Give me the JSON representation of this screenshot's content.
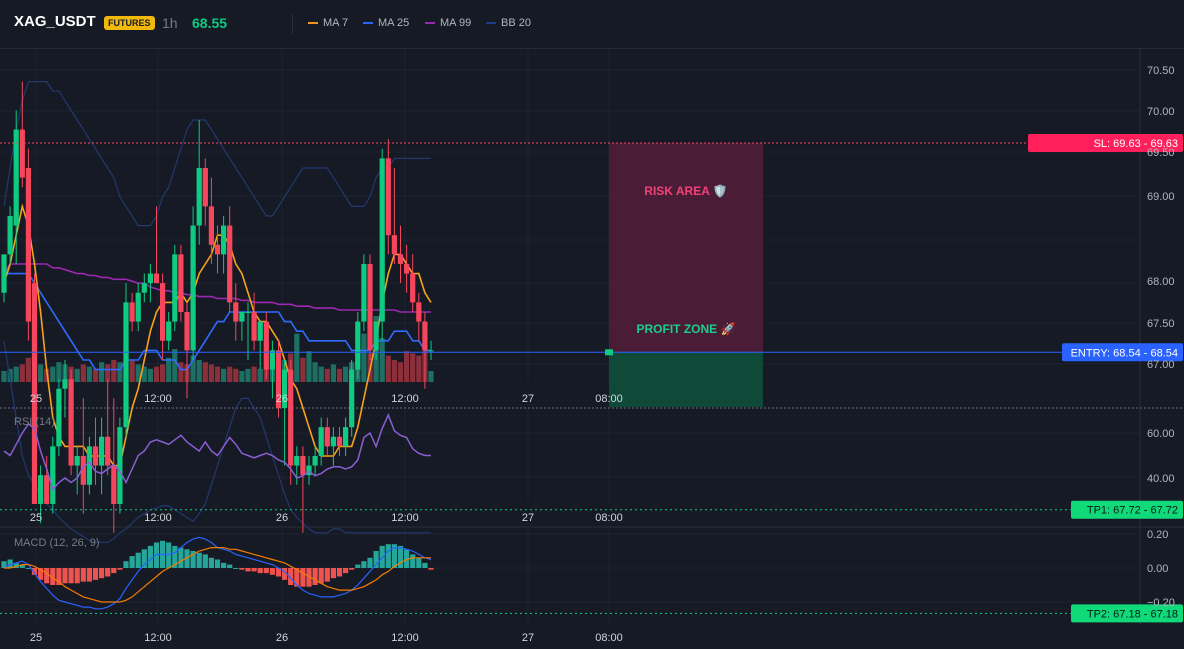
{
  "header": {
    "symbol": "XAG_USDT",
    "badge": "FUTURES",
    "timeframe": "1h",
    "price": "68.55",
    "legend": [
      {
        "label": "MA 7",
        "color": "#f7931a"
      },
      {
        "label": "MA 25",
        "color": "#2962ff"
      },
      {
        "label": "MA 99",
        "color": "#9c27b0"
      },
      {
        "label": "BB 20",
        "color": "#1e3a8a"
      }
    ]
  },
  "colors": {
    "up": "#0ecb81",
    "down": "#f6465d",
    "vol_up": "#1e6f63",
    "vol_down": "#8b2f3a",
    "ma7": "#f7a21b",
    "ma25": "#2f6bff",
    "ma99": "#9c27b0",
    "bb": "#22386e",
    "rsi": "#8a5fd3",
    "macd_line": "#2962ff",
    "signal_line": "#f57c00",
    "hist_pos": "#26a69a",
    "hist_neg": "#ef5350"
  },
  "main_axis": {
    "ticks": [
      "70.50",
      "70.00",
      "69.50",
      "69.00",
      "68.00",
      "67.50",
      "67.00"
    ]
  },
  "time_labels": [
    "25",
    "12:00",
    "26",
    "12:00",
    "27",
    "08:00"
  ],
  "levels": {
    "sl": {
      "label": "SL: 69.63",
      "value": "69.63",
      "price": 69.63
    },
    "entry": {
      "label": "ENTRY: 68.54",
      "value": "68.54",
      "price": 68.54
    },
    "tp1": {
      "label": "TP1: 67.72",
      "value": "67.72",
      "price": 67.72
    },
    "tp2": {
      "label": "TP2: 67.18",
      "value": "67.18",
      "price": 67.18
    }
  },
  "zones": {
    "risk": "RISK AREA 🛡️",
    "profit": "PROFIT ZONE 🚀"
  },
  "rsi": {
    "title": "RSI (14)",
    "ticks": [
      "60.00",
      "40.00"
    ]
  },
  "macd": {
    "title": "MACD (12, 26, 9)",
    "ticks": [
      "0.20",
      "0.00",
      "−0.20"
    ]
  },
  "chart_data": {
    "type": "candlestick",
    "price_range": [
      66.8,
      70.8
    ],
    "candles": [
      {
        "o": 68.85,
        "h": 69.05,
        "l": 68.8,
        "c": 69.05
      },
      {
        "o": 69.05,
        "h": 69.3,
        "l": 69.0,
        "c": 69.25
      },
      {
        "o": 69.2,
        "h": 69.8,
        "l": 69.0,
        "c": 69.7
      },
      {
        "o": 69.7,
        "h": 69.95,
        "l": 69.4,
        "c": 69.45
      },
      {
        "o": 69.5,
        "h": 69.6,
        "l": 68.6,
        "c": 68.7
      },
      {
        "o": 68.9,
        "h": 68.95,
        "l": 67.75,
        "c": 67.75
      },
      {
        "o": 67.75,
        "h": 67.95,
        "l": 67.65,
        "c": 67.9
      },
      {
        "o": 67.9,
        "h": 68.0,
        "l": 67.75,
        "c": 67.75
      },
      {
        "o": 67.75,
        "h": 68.1,
        "l": 67.7,
        "c": 68.05
      },
      {
        "o": 68.05,
        "h": 68.4,
        "l": 68.0,
        "c": 68.35
      },
      {
        "o": 68.35,
        "h": 68.5,
        "l": 68.2,
        "c": 68.4
      },
      {
        "o": 68.4,
        "h": 68.45,
        "l": 67.9,
        "c": 67.95
      },
      {
        "o": 67.95,
        "h": 68.05,
        "l": 67.8,
        "c": 68.0
      },
      {
        "o": 68.0,
        "h": 68.3,
        "l": 67.7,
        "c": 67.85
      },
      {
        "o": 67.85,
        "h": 68.1,
        "l": 67.8,
        "c": 68.05
      },
      {
        "o": 68.05,
        "h": 68.2,
        "l": 67.85,
        "c": 67.95
      },
      {
        "o": 67.95,
        "h": 68.2,
        "l": 67.8,
        "c": 68.1
      },
      {
        "o": 68.1,
        "h": 68.4,
        "l": 67.9,
        "c": 67.95
      },
      {
        "o": 67.95,
        "h": 68.3,
        "l": 67.6,
        "c": 67.75
      },
      {
        "o": 67.75,
        "h": 68.2,
        "l": 67.7,
        "c": 68.15
      },
      {
        "o": 68.15,
        "h": 68.9,
        "l": 68.1,
        "c": 68.8
      },
      {
        "o": 68.8,
        "h": 68.85,
        "l": 68.65,
        "c": 68.7
      },
      {
        "o": 68.7,
        "h": 68.9,
        "l": 68.65,
        "c": 68.85
      },
      {
        "o": 68.85,
        "h": 68.95,
        "l": 68.8,
        "c": 68.9
      },
      {
        "o": 68.9,
        "h": 69.0,
        "l": 68.8,
        "c": 68.95
      },
      {
        "o": 68.95,
        "h": 69.3,
        "l": 68.9,
        "c": 68.9
      },
      {
        "o": 68.9,
        "h": 68.95,
        "l": 68.5,
        "c": 68.6
      },
      {
        "o": 68.6,
        "h": 68.75,
        "l": 68.55,
        "c": 68.7
      },
      {
        "o": 68.7,
        "h": 69.1,
        "l": 68.65,
        "c": 69.05
      },
      {
        "o": 69.05,
        "h": 69.1,
        "l": 68.7,
        "c": 68.75
      },
      {
        "o": 68.75,
        "h": 68.8,
        "l": 68.3,
        "c": 68.55
      },
      {
        "o": 68.55,
        "h": 69.3,
        "l": 68.5,
        "c": 69.2
      },
      {
        "o": 69.2,
        "h": 69.75,
        "l": 69.1,
        "c": 69.5
      },
      {
        "o": 69.5,
        "h": 69.55,
        "l": 69.2,
        "c": 69.3
      },
      {
        "o": 69.3,
        "h": 69.45,
        "l": 69.0,
        "c": 69.1
      },
      {
        "o": 69.1,
        "h": 69.2,
        "l": 68.95,
        "c": 69.05
      },
      {
        "o": 69.05,
        "h": 69.25,
        "l": 68.95,
        "c": 69.2
      },
      {
        "o": 69.2,
        "h": 69.3,
        "l": 68.75,
        "c": 68.8
      },
      {
        "o": 68.8,
        "h": 68.9,
        "l": 68.6,
        "c": 68.7
      },
      {
        "o": 68.7,
        "h": 68.75,
        "l": 68.6,
        "c": 68.75
      },
      {
        "o": 68.75,
        "h": 68.8,
        "l": 68.5,
        "c": 68.75
      },
      {
        "o": 68.75,
        "h": 68.85,
        "l": 68.55,
        "c": 68.6
      },
      {
        "o": 68.6,
        "h": 68.7,
        "l": 68.45,
        "c": 68.7
      },
      {
        "o": 68.7,
        "h": 68.75,
        "l": 68.4,
        "c": 68.45
      },
      {
        "o": 68.45,
        "h": 68.6,
        "l": 68.3,
        "c": 68.55
      },
      {
        "o": 68.55,
        "h": 68.6,
        "l": 68.2,
        "c": 68.25
      },
      {
        "o": 68.25,
        "h": 68.5,
        "l": 67.95,
        "c": 68.45
      },
      {
        "o": 68.45,
        "h": 68.5,
        "l": 67.85,
        "c": 67.95
      },
      {
        "o": 67.95,
        "h": 68.05,
        "l": 67.85,
        "c": 68.0
      },
      {
        "o": 68.0,
        "h": 68.05,
        "l": 67.6,
        "c": 67.9
      },
      {
        "o": 67.9,
        "h": 68.0,
        "l": 67.85,
        "c": 67.95
      },
      {
        "o": 67.95,
        "h": 68.05,
        "l": 67.9,
        "c": 68.0
      },
      {
        "o": 68.0,
        "h": 68.2,
        "l": 67.95,
        "c": 68.15
      },
      {
        "o": 68.15,
        "h": 68.2,
        "l": 68.0,
        "c": 68.05
      },
      {
        "o": 68.05,
        "h": 68.15,
        "l": 67.95,
        "c": 68.1
      },
      {
        "o": 68.1,
        "h": 68.15,
        "l": 68.0,
        "c": 68.05
      },
      {
        "o": 68.05,
        "h": 68.2,
        "l": 68.0,
        "c": 68.15
      },
      {
        "o": 68.15,
        "h": 68.5,
        "l": 68.1,
        "c": 68.45
      },
      {
        "o": 68.45,
        "h": 68.75,
        "l": 68.4,
        "c": 68.7
      },
      {
        "o": 68.7,
        "h": 69.05,
        "l": 68.65,
        "c": 69.0
      },
      {
        "o": 69.0,
        "h": 69.05,
        "l": 68.5,
        "c": 68.55
      },
      {
        "o": 68.55,
        "h": 68.7,
        "l": 68.5,
        "c": 68.7
      },
      {
        "o": 68.7,
        "h": 69.6,
        "l": 68.6,
        "c": 69.55
      },
      {
        "o": 69.55,
        "h": 69.65,
        "l": 69.05,
        "c": 69.15
      },
      {
        "o": 69.15,
        "h": 69.5,
        "l": 69.0,
        "c": 69.05
      },
      {
        "o": 69.05,
        "h": 69.2,
        "l": 68.9,
        "c": 69.0
      },
      {
        "o": 69.0,
        "h": 69.1,
        "l": 68.85,
        "c": 68.95
      },
      {
        "o": 68.95,
        "h": 69.05,
        "l": 68.75,
        "c": 68.8
      },
      {
        "o": 68.8,
        "h": 68.85,
        "l": 68.6,
        "c": 68.7
      },
      {
        "o": 68.7,
        "h": 68.75,
        "l": 68.35,
        "c": 68.55
      },
      {
        "o": 68.55,
        "h": 68.6,
        "l": 68.5,
        "c": 68.55
      }
    ],
    "volume": [
      10,
      12,
      14,
      16,
      22,
      60,
      16,
      12,
      14,
      18,
      16,
      14,
      12,
      16,
      14,
      12,
      18,
      16,
      20,
      18,
      30,
      20,
      16,
      14,
      12,
      14,
      16,
      22,
      30,
      18,
      16,
      24,
      20,
      18,
      16,
      14,
      12,
      14,
      12,
      10,
      12,
      14,
      12,
      14,
      16,
      18,
      20,
      26,
      44,
      22,
      28,
      18,
      14,
      12,
      16,
      12,
      14,
      18,
      30,
      44,
      26,
      60,
      40,
      24,
      20,
      18,
      28,
      26,
      24,
      30,
      10
    ],
    "ma7": [
      68.9,
      69.0,
      69.15,
      69.3,
      69.2,
      69.0,
      68.75,
      68.45,
      68.2,
      68.1,
      68.05,
      68.05,
      68.05,
      68.05,
      68.0,
      68.0,
      68.0,
      68.0,
      67.95,
      67.95,
      68.1,
      68.25,
      68.35,
      68.5,
      68.65,
      68.75,
      68.8,
      68.8,
      68.8,
      68.85,
      68.8,
      68.85,
      68.95,
      69.0,
      69.05,
      69.15,
      69.15,
      69.1,
      69.0,
      68.95,
      68.85,
      68.75,
      68.7,
      68.7,
      68.65,
      68.6,
      68.5,
      68.4,
      68.35,
      68.25,
      68.15,
      68.05,
      68.0,
      68.0,
      68.0,
      68.05,
      68.05,
      68.05,
      68.15,
      68.3,
      68.45,
      68.6,
      68.8,
      68.95,
      69.05,
      69.05,
      69.0,
      68.95,
      68.95,
      68.85,
      68.8
    ],
    "ma25": [
      68.95,
      68.95,
      68.95,
      68.95,
      68.95,
      68.9,
      68.85,
      68.8,
      68.75,
      68.7,
      68.65,
      68.6,
      68.55,
      68.5,
      68.5,
      68.45,
      68.45,
      68.45,
      68.45,
      68.45,
      68.5,
      68.5,
      68.5,
      68.55,
      68.55,
      68.55,
      68.5,
      68.5,
      68.5,
      68.45,
      68.45,
      68.5,
      68.55,
      68.6,
      68.65,
      68.7,
      68.7,
      68.75,
      68.75,
      68.75,
      68.75,
      68.75,
      68.75,
      68.75,
      68.75,
      68.75,
      68.7,
      68.7,
      68.65,
      68.65,
      68.6,
      68.6,
      68.6,
      68.6,
      68.6,
      68.6,
      68.6,
      68.55,
      68.55,
      68.55,
      68.55,
      68.6,
      68.6,
      68.6,
      68.65,
      68.65,
      68.65,
      68.6,
      68.6,
      68.55,
      68.55
    ],
    "ma99": [
      68.95,
      69.0,
      69.0,
      69.0,
      69.0,
      69.0,
      69.0,
      69.0,
      68.98,
      68.98,
      68.97,
      68.96,
      68.95,
      68.95,
      68.94,
      68.94,
      68.93,
      68.93,
      68.92,
      68.92,
      68.92,
      68.91,
      68.9,
      68.9,
      68.88,
      68.87,
      68.86,
      68.86,
      68.85,
      68.85,
      68.84,
      68.84,
      68.83,
      68.83,
      68.83,
      68.82,
      68.82,
      68.82,
      68.82,
      68.81,
      68.81,
      68.8,
      68.8,
      68.8,
      68.8,
      68.79,
      68.79,
      68.79,
      68.78,
      68.78,
      68.78,
      68.77,
      68.77,
      68.77,
      68.77,
      68.76,
      68.76,
      68.76,
      68.76,
      68.76,
      68.76,
      68.76,
      68.76,
      68.76,
      68.76,
      68.75,
      68.75,
      68.75,
      68.75,
      68.75,
      68.75
    ],
    "bb_upper": [
      69.3,
      69.5,
      69.7,
      69.85,
      69.95,
      69.95,
      69.95,
      69.95,
      69.9,
      69.9,
      69.85,
      69.8,
      69.75,
      69.7,
      69.65,
      69.6,
      69.55,
      69.5,
      69.45,
      69.35,
      69.3,
      69.25,
      69.2,
      69.2,
      69.2,
      69.25,
      69.35,
      69.4,
      69.5,
      69.6,
      69.7,
      69.75,
      69.75,
      69.75,
      69.7,
      69.65,
      69.6,
      69.55,
      69.5,
      69.45,
      69.4,
      69.35,
      69.3,
      69.25,
      69.25,
      69.3,
      69.35,
      69.4,
      69.45,
      69.5,
      69.5,
      69.5,
      69.5,
      69.5,
      69.45,
      69.4,
      69.35,
      69.3,
      69.3,
      69.3,
      69.35,
      69.45,
      69.5,
      69.5,
      69.55,
      69.55,
      69.55,
      69.55,
      69.55,
      69.55,
      69.55
    ],
    "bb_lower": [
      68.6,
      68.4,
      68.2,
      68.0,
      67.9,
      67.85,
      67.8,
      67.75,
      67.72,
      67.68,
      67.65,
      67.62,
      67.6,
      67.58,
      67.56,
      67.55,
      67.55,
      67.55,
      67.57,
      67.6,
      67.62,
      67.65,
      67.68,
      67.7,
      67.72,
      67.73,
      67.74,
      67.74,
      67.72,
      67.7,
      67.68,
      67.66,
      67.7,
      67.75,
      67.85,
      67.95,
      68.05,
      68.15,
      68.25,
      68.3,
      68.3,
      68.25,
      68.2,
      68.1,
      68.0,
      67.9,
      67.8,
      67.72,
      67.68,
      67.65,
      67.62,
      67.6,
      67.6,
      67.6,
      67.62,
      67.62,
      67.6,
      67.6,
      67.6,
      67.6,
      67.6,
      67.6,
      67.6,
      67.6,
      67.6,
      67.6,
      67.6,
      67.6,
      67.6,
      67.6,
      67.6
    ],
    "rsi": [
      52,
      50,
      55,
      60,
      64,
      62,
      52,
      44,
      35,
      38,
      40,
      38,
      40,
      45,
      47,
      43,
      42,
      44,
      46,
      43,
      38,
      44,
      50,
      52,
      56,
      57,
      56,
      55,
      57,
      59,
      56,
      54,
      52,
      56,
      52,
      50,
      54,
      58,
      55,
      51,
      50,
      49,
      50,
      51,
      50,
      48,
      47,
      44,
      40,
      41,
      43,
      41,
      42,
      44,
      45,
      45,
      44,
      45,
      48,
      58,
      60,
      54,
      62,
      68,
      61,
      59,
      58,
      53,
      51,
      50,
      50
    ],
    "macd": [
      0.0,
      0.02,
      0.03,
      0.04,
      0.02,
      -0.03,
      -0.08,
      -0.12,
      -0.16,
      -0.19,
      -0.2,
      -0.21,
      -0.22,
      -0.23,
      -0.23,
      -0.24,
      -0.24,
      -0.23,
      -0.21,
      -0.18,
      -0.12,
      -0.07,
      -0.02,
      0.02,
      0.05,
      0.08,
      0.08,
      0.08,
      0.09,
      0.12,
      0.15,
      0.17,
      0.18,
      0.17,
      0.15,
      0.12,
      0.11,
      0.1,
      0.08,
      0.07,
      0.06,
      0.05,
      0.04,
      0.03,
      0.02,
      0.0,
      -0.02,
      -0.06,
      -0.1,
      -0.13,
      -0.15,
      -0.16,
      -0.17,
      -0.17,
      -0.17,
      -0.16,
      -0.15,
      -0.13,
      -0.1,
      -0.06,
      -0.02,
      0.02,
      0.06,
      0.1,
      0.12,
      0.12,
      0.11,
      0.1,
      0.08,
      0.06,
      0.05
    ],
    "signal": [
      0.0,
      0.0,
      0.01,
      0.02,
      0.02,
      0.01,
      -0.01,
      -0.03,
      -0.06,
      -0.08,
      -0.11,
      -0.13,
      -0.15,
      -0.17,
      -0.18,
      -0.19,
      -0.2,
      -0.2,
      -0.2,
      -0.2,
      -0.19,
      -0.17,
      -0.14,
      -0.11,
      -0.08,
      -0.05,
      -0.02,
      0.0,
      0.02,
      0.04,
      0.06,
      0.08,
      0.1,
      0.11,
      0.12,
      0.12,
      0.12,
      0.11,
      0.11,
      0.1,
      0.09,
      0.08,
      0.07,
      0.06,
      0.05,
      0.04,
      0.03,
      0.01,
      -0.01,
      -0.03,
      -0.05,
      -0.07,
      -0.09,
      -0.11,
      -0.12,
      -0.13,
      -0.13,
      -0.13,
      -0.12,
      -0.11,
      -0.09,
      -0.07,
      -0.04,
      -0.02,
      0.01,
      0.03,
      0.05,
      0.06,
      0.06,
      0.06,
      0.06
    ],
    "hist": [
      0.04,
      0.05,
      0.03,
      0.02,
      0.0,
      -0.04,
      -0.07,
      -0.09,
      -0.1,
      -0.1,
      -0.09,
      -0.09,
      -0.09,
      -0.08,
      -0.08,
      -0.07,
      -0.06,
      -0.05,
      -0.03,
      -0.01,
      0.04,
      0.07,
      0.09,
      0.11,
      0.13,
      0.15,
      0.16,
      0.15,
      0.13,
      0.12,
      0.11,
      0.1,
      0.09,
      0.08,
      0.06,
      0.05,
      0.03,
      0.02,
      0.0,
      -0.01,
      -0.02,
      -0.02,
      -0.03,
      -0.03,
      -0.04,
      -0.05,
      -0.07,
      -0.1,
      -0.11,
      -0.11,
      -0.11,
      -0.1,
      -0.09,
      -0.08,
      -0.06,
      -0.05,
      -0.03,
      -0.01,
      0.02,
      0.04,
      0.06,
      0.1,
      0.13,
      0.14,
      0.14,
      0.13,
      0.11,
      0.08,
      0.06,
      0.03,
      -0.01
    ]
  }
}
